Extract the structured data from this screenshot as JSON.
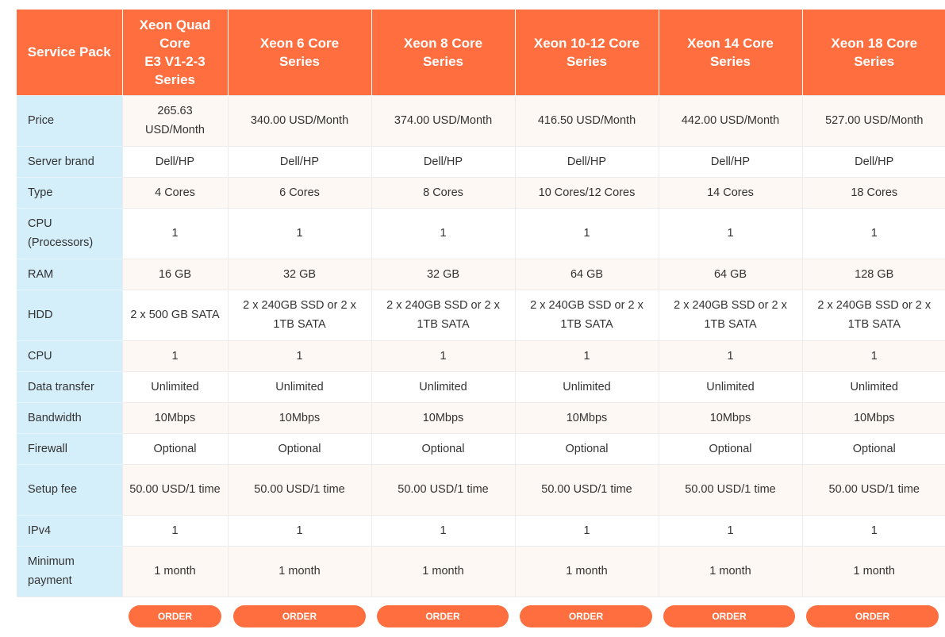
{
  "table": {
    "corner_label": "Service Pack",
    "columns": [
      {
        "lines": [
          "Xeon Quad",
          "Core",
          "E3 V1-2-3",
          "Series"
        ]
      },
      {
        "lines": [
          "Xeon 6 Core",
          "Series"
        ]
      },
      {
        "lines": [
          "Xeon 8 Core",
          "Series"
        ]
      },
      {
        "lines": [
          "Xeon 10-12 Core",
          "Series"
        ]
      },
      {
        "lines": [
          "Xeon 14 Core",
          "Series"
        ]
      },
      {
        "lines": [
          "Xeon 18 Core",
          "Series"
        ]
      }
    ],
    "rows": [
      {
        "label": "Price",
        "values": [
          "265.63 USD/Month",
          "340.00 USD/Month",
          "374.00 USD/Month",
          "416.50 USD/Month",
          "442.00 USD/Month",
          "527.00 USD/Month"
        ]
      },
      {
        "label": "Server brand",
        "values": [
          "Dell/HP",
          "Dell/HP",
          "Dell/HP",
          "Dell/HP",
          "Dell/HP",
          "Dell/HP"
        ]
      },
      {
        "label": "Type",
        "values": [
          "4 Cores",
          "6 Cores",
          "8 Cores",
          "10 Cores/12 Cores",
          "14 Cores",
          "18 Cores"
        ]
      },
      {
        "label": "CPU (Processors)",
        "values": [
          "1",
          "1",
          "1",
          "1",
          "1",
          "1"
        ]
      },
      {
        "label": "RAM",
        "values": [
          "16 GB",
          "32 GB",
          "32 GB",
          "64 GB",
          "64 GB",
          "128 GB"
        ]
      },
      {
        "label": "HDD",
        "values": [
          "2 x 500 GB SATA",
          "2 x 240GB SSD or 2 x 1TB SATA",
          "2 x 240GB SSD or 2 x 1TB SATA",
          "2 x 240GB SSD or 2 x 1TB SATA",
          "2 x 240GB SSD or 2 x 1TB SATA",
          "2 x 240GB SSD or 2 x 1TB SATA"
        ]
      },
      {
        "label": "CPU",
        "values": [
          "1",
          "1",
          "1",
          "1",
          "1",
          "1"
        ]
      },
      {
        "label": "Data transfer",
        "values": [
          "Unlimited",
          "Unlimited",
          "Unlimited",
          "Unlimited",
          "Unlimited",
          "Unlimited"
        ]
      },
      {
        "label": "Bandwidth",
        "values": [
          "10Mbps",
          "10Mbps",
          "10Mbps",
          "10Mbps",
          "10Mbps",
          "10Mbps"
        ]
      },
      {
        "label": "Firewall",
        "values": [
          "Optional",
          "Optional",
          "Optional",
          "Optional",
          "Optional",
          "Optional"
        ]
      },
      {
        "label": "Setup fee",
        "values": [
          "50.00 USD/1 time",
          "50.00 USD/1 time",
          "50.00 USD/1 time",
          "50.00 USD/1 time",
          "50.00 USD/1 time",
          "50.00 USD/1 time"
        ]
      },
      {
        "label": "IPv4",
        "values": [
          "1",
          "1",
          "1",
          "1",
          "1",
          "1"
        ]
      },
      {
        "label": "Minimum payment",
        "values": [
          "1 month",
          "1 month",
          "1 month",
          "1 month",
          "1 month",
          "1 month"
        ]
      }
    ]
  },
  "order_buttons": [
    "ORDER",
    "ORDER",
    "ORDER",
    "ORDER",
    "ORDER",
    "ORDER"
  ],
  "colors": {
    "header_bg": "#ff6e3f",
    "label_column_bg": "#d4eefa",
    "alt_row_bg": "#fdf8f3",
    "button_bg": "#ff6e3f"
  }
}
